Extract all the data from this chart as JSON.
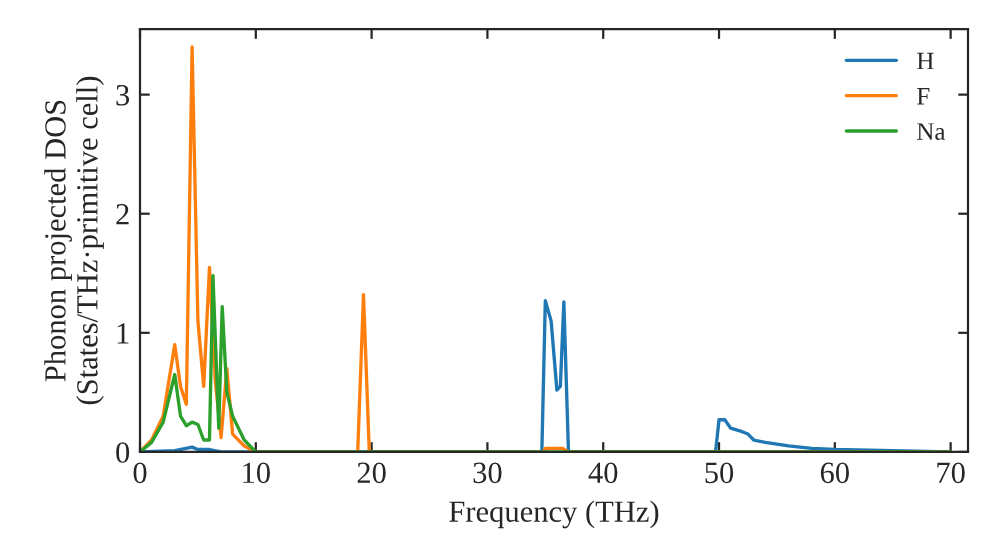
{
  "chart_data": {
    "type": "line",
    "xlabel": "Frequency (THz)",
    "ylabel": "Phonon projected DOS\n(States/THz·primitive cell)",
    "xlim": [
      0,
      71.5
    ],
    "ylim": [
      0,
      3.55
    ],
    "xticks": [
      0,
      10,
      20,
      30,
      40,
      50,
      60,
      70
    ],
    "yticks": [
      0,
      1,
      2,
      3
    ],
    "legend": "top right",
    "grid": false,
    "series": [
      {
        "name": "H",
        "color": "#1f77b4",
        "x": [
          0,
          3,
          4.5,
          5,
          6,
          7,
          34.7,
          35,
          35.5,
          36,
          36.3,
          36.6,
          37,
          49.7,
          50,
          50.5,
          51,
          52,
          52.5,
          53,
          54,
          56,
          58,
          60,
          65,
          70
        ],
        "values": [
          0,
          0.01,
          0.04,
          0.02,
          0.02,
          0,
          0,
          1.27,
          1.1,
          0.52,
          0.55,
          1.26,
          0,
          0,
          0.27,
          0.27,
          0.2,
          0.17,
          0.15,
          0.1,
          0.08,
          0.05,
          0.03,
          0.02,
          0.01,
          0
        ]
      },
      {
        "name": "F",
        "color": "#ff7f0e",
        "x": [
          0,
          1,
          2,
          2.5,
          3,
          3.5,
          4,
          4.5,
          5,
          5.5,
          6,
          6.5,
          7,
          7.5,
          8,
          9,
          10,
          18.8,
          19.3,
          19.8,
          34.8,
          35,
          36.5,
          37,
          70
        ],
        "values": [
          0,
          0.1,
          0.3,
          0.6,
          0.9,
          0.55,
          0.4,
          3.4,
          1.1,
          0.55,
          1.55,
          0.6,
          0.12,
          0.7,
          0.15,
          0.05,
          0,
          0,
          1.32,
          0,
          0,
          0.03,
          0.03,
          0,
          0
        ]
      },
      {
        "name": "Na",
        "color": "#2ca02c",
        "x": [
          0,
          1,
          2,
          3,
          3.5,
          4,
          4.5,
          5,
          5.5,
          6,
          6.3,
          6.8,
          7.1,
          7.5,
          8,
          9,
          10,
          70
        ],
        "values": [
          0,
          0.08,
          0.25,
          0.65,
          0.3,
          0.22,
          0.25,
          0.23,
          0.1,
          0.1,
          1.48,
          0.2,
          1.22,
          0.5,
          0.3,
          0.1,
          0,
          0
        ]
      }
    ]
  }
}
